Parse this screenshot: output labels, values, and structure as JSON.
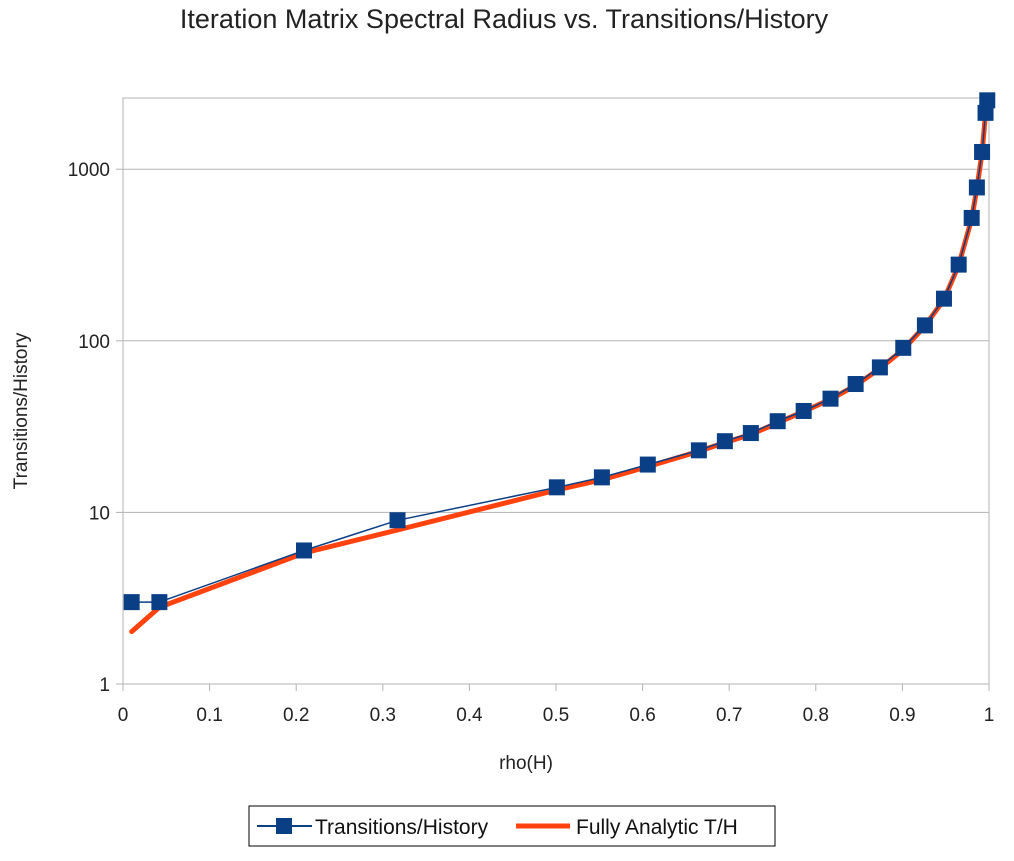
{
  "chart_data": {
    "type": "line",
    "title": "Iteration Matrix Spectral Radius vs. Transitions/History",
    "xlabel": "rho(H)",
    "ylabel": "Transitions/History",
    "xlim": [
      0,
      1
    ],
    "ylim": [
      1,
      2600
    ],
    "yscale": "log",
    "x_ticks": [
      "0",
      "0.1",
      "0.2",
      "0.3",
      "0.4",
      "0.5",
      "0.6",
      "0.7",
      "0.8",
      "0.9",
      "1"
    ],
    "y_ticks": [
      "1",
      "10",
      "100",
      "1000"
    ],
    "grid": "horizontal",
    "legend_position": "bottom",
    "series": [
      {
        "name": "Transitions/History",
        "color": "#0b3f85",
        "marker": "square",
        "x": [
          0.01,
          0.042,
          0.209,
          0.317,
          0.501,
          0.553,
          0.606,
          0.665,
          0.695,
          0.725,
          0.756,
          0.786,
          0.817,
          0.846,
          0.874,
          0.901,
          0.926,
          0.948,
          0.965,
          0.98,
          0.986,
          0.992,
          0.996,
          0.998
        ],
        "y": [
          3,
          3,
          6,
          9,
          14,
          16,
          19,
          23,
          26,
          29,
          34,
          39,
          46,
          56,
          70,
          91,
          123,
          176,
          278,
          520,
          783,
          1260,
          2130,
          2520
        ]
      },
      {
        "name": "Fully Analytic T/H",
        "color": "#ff420e",
        "marker": "none",
        "x": [
          0.01,
          0.042,
          0.209,
          0.317,
          0.501,
          0.553,
          0.606,
          0.665,
          0.695,
          0.725,
          0.756,
          0.786,
          0.817,
          0.846,
          0.874,
          0.901,
          0.926,
          0.948,
          0.965,
          0.98,
          0.986,
          0.992,
          0.996,
          0.998
        ],
        "y": [
          2.02,
          2.8,
          5.8,
          7.9,
          13.5,
          15.5,
          18.5,
          22.7,
          25.5,
          28.5,
          33.3,
          38.8,
          45.6,
          55,
          69,
          89,
          122,
          174,
          276,
          515,
          775,
          1250,
          2100,
          2500
        ]
      }
    ]
  }
}
